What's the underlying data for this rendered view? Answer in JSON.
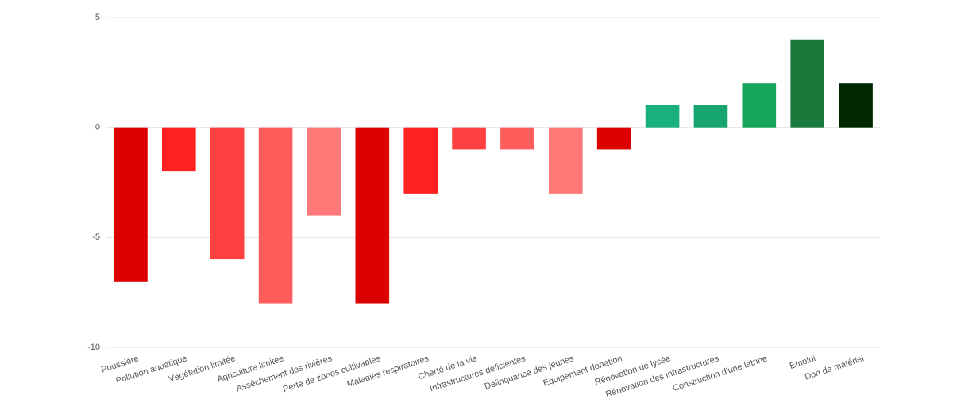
{
  "chart_data": {
    "type": "bar",
    "categories": [
      "Poussière",
      "Pollution aquatique",
      "Végétation limitée",
      "Agriculture limitée",
      "Assèchement des rivières",
      "Perte de zones cultivables",
      "Maladies respiratoires",
      "Cherté de la vie",
      "Infrastructures déficientes",
      "Délinquance des jeunes",
      "Equipement donation",
      "Rénovation de lycée",
      "Rénovation des infrastructures",
      "Construction d'une latrine",
      "Emploi",
      "Don de matériel"
    ],
    "values": [
      -7,
      -2,
      -6,
      -8,
      -4,
      -8,
      -3,
      -1,
      -1,
      -3,
      -1,
      1,
      1,
      2,
      4,
      2
    ],
    "colors": [
      "#dd0000",
      "#ff2020",
      "#ff4040",
      "#ff5c5c",
      "#ff7777",
      "#dd0000",
      "#ff2020",
      "#ff4040",
      "#ff5c5c",
      "#ff7777",
      "#dd0000",
      "#1aaf7e",
      "#17a672",
      "#16a35a",
      "#1a7a3c",
      "#002800"
    ],
    "ylim": [
      -10,
      5
    ],
    "yticks": [
      -10,
      -5,
      0,
      5
    ],
    "grid": true
  }
}
